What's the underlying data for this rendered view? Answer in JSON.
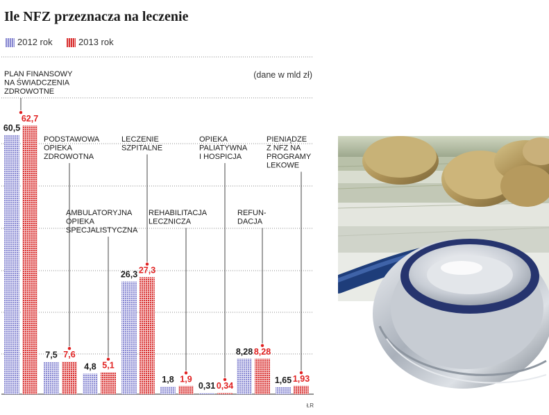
{
  "chart_data": {
    "type": "bar",
    "title": "Ile NFZ przeznacza na leczenie",
    "unit_note": "(dane w mld zł)",
    "credit": "ŁR",
    "legend_position": "top-left",
    "grid": true,
    "ylim": [
      0,
      70
    ],
    "series": [
      {
        "name": "2012 rok",
        "color": "#8f8fd6"
      },
      {
        "name": "2013 rok",
        "color": "#e03030"
      }
    ],
    "categories": [
      {
        "label": [
          "PLAN FINANSOWY",
          "NA ŚWIADCZENIA",
          "ZDROWOTNE"
        ],
        "values": [
          60.5,
          62.7
        ],
        "value_labels": [
          "60,5",
          "62,7"
        ]
      },
      {
        "label": [
          "PODSTAWOWA",
          "OPIEKA",
          "ZDROWOTNA"
        ],
        "values": [
          7.5,
          7.6
        ],
        "value_labels": [
          "7,5",
          "7,6"
        ]
      },
      {
        "label": [
          "AMBULATORYJNA",
          "OPIEKA",
          "SPECJALISTYCZNA"
        ],
        "values": [
          4.8,
          5.1
        ],
        "value_labels": [
          "4,8",
          "5,1"
        ]
      },
      {
        "label": [
          "LECZENIE",
          "SZPITALNE"
        ],
        "values": [
          26.3,
          27.3
        ],
        "value_labels": [
          "26,3",
          "27,3"
        ]
      },
      {
        "label": [
          "REHABILITACJA",
          "LECZNICZA"
        ],
        "values": [
          1.8,
          1.9
        ],
        "value_labels": [
          "1,8",
          "1,9"
        ]
      },
      {
        "label": [
          "OPIEKA",
          "PALIATYWNA",
          "I HOSPICJA"
        ],
        "values": [
          0.31,
          0.34
        ],
        "value_labels": [
          "0,31",
          "0,34"
        ]
      },
      {
        "label": [
          "REFUN-",
          "DACJA"
        ],
        "values": [
          8.28,
          8.28
        ],
        "value_labels": [
          "8,28",
          "8,28"
        ]
      },
      {
        "label": [
          "PIENIĄDZE",
          "Z NFZ NA",
          "PROGRAMY",
          "LEKOWE"
        ],
        "values": [
          1.65,
          1.93
        ],
        "value_labels": [
          "1,65",
          "1,93"
        ]
      }
    ]
  },
  "photo": {
    "icon": "stethoscope-coins-banknotes-icon"
  }
}
